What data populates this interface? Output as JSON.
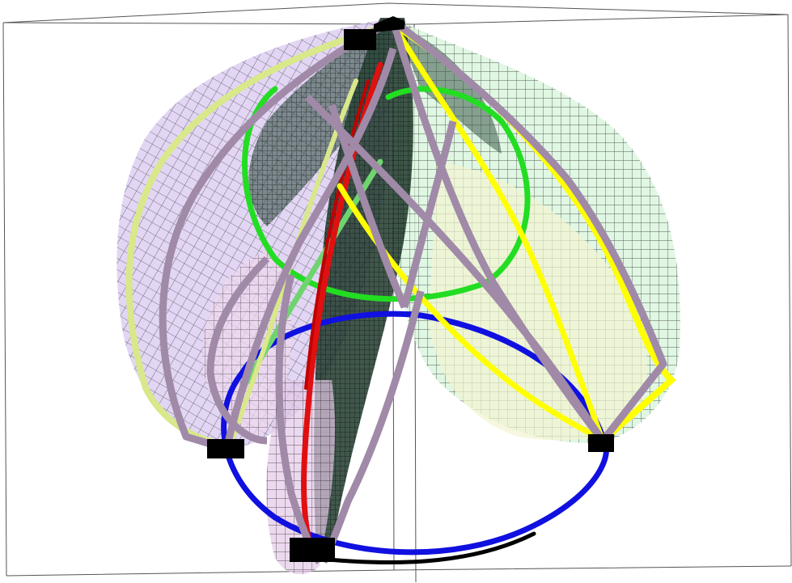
{
  "figure": {
    "kind": "3d-surface-render",
    "background": "#ffffff",
    "colors": {
      "box_edge": "#555555",
      "mesh_line": "#1a1a1a",
      "lilac_band": "#a08aa8",
      "yellow_band": "#ffff00",
      "light_yellow_band": "#d8e88a",
      "green_band": "#22dd22",
      "red_band": "#e01010",
      "blue_band": "#1010e0",
      "black_band": "#000000",
      "vertex_marker": "#000000",
      "surface_purple": "#d8c8f0",
      "surface_green": "#d8f5dc",
      "surface_yellow": "#f2f4d0",
      "surface_pink": "#f0d8ee",
      "surface_dark": "#1f3a2c"
    }
  }
}
